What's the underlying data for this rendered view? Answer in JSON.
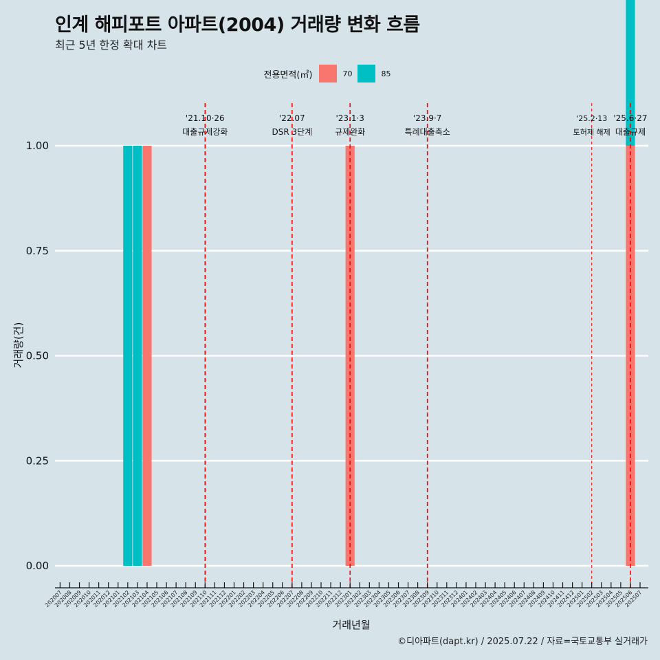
{
  "title": "인계 해피포트 아파트(2004) 거래량 변화 흐름",
  "subtitle": "최근 5년 한정 확대 차트",
  "caption": "©디아파트(dapt.kr) / 2025.07.22 / 자료=국토교통부 실거래가",
  "legend": {
    "title": "전용면적(㎡)",
    "items": [
      {
        "label": "70",
        "color": "#f8766d"
      },
      {
        "label": "85",
        "color": "#00bfc4"
      }
    ]
  },
  "chart_data": {
    "type": "bar",
    "xlabel": "거래년월",
    "ylabel": "거래량(건)",
    "ylim": [
      0,
      1
    ],
    "yticks": [
      "0.00",
      "0.25",
      "0.50",
      "0.75",
      "1.00"
    ],
    "grid": "horizontal",
    "legend_position": "top",
    "categories": [
      "202007",
      "202008",
      "202009",
      "202010",
      "202011",
      "202012",
      "202101",
      "202102",
      "202103",
      "202104",
      "202105",
      "202106",
      "202107",
      "202108",
      "202109",
      "202110",
      "202111",
      "202112",
      "202201",
      "202202",
      "202203",
      "202204",
      "202205",
      "202206",
      "202207",
      "202208",
      "202209",
      "202210",
      "202211",
      "202212",
      "202301",
      "202302",
      "202303",
      "202304",
      "202305",
      "202306",
      "202307",
      "202308",
      "202309",
      "202310",
      "202311",
      "202312",
      "202401",
      "202402",
      "202403",
      "202404",
      "202405",
      "202406",
      "202407",
      "202408",
      "202409",
      "202410",
      "202411",
      "202412",
      "202501",
      "202502",
      "202503",
      "202504",
      "202505",
      "202506",
      "202507"
    ],
    "series": [
      {
        "name": "70",
        "color": "#f8766d",
        "points": [
          [
            "202104",
            1
          ],
          [
            "202301",
            1
          ],
          [
            "202506",
            1
          ]
        ]
      },
      {
        "name": "85",
        "color": "#00bfc4",
        "points": [
          [
            "202102",
            1
          ],
          [
            "202103",
            1
          ],
          [
            "202506",
            1
          ]
        ]
      }
    ],
    "annotations": [
      {
        "at": "202110",
        "date": "'21.10·26",
        "label": "대출규제강화",
        "style": "major"
      },
      {
        "at": "202207",
        "date": "'22.07",
        "label": "DSR 3단계",
        "style": "major"
      },
      {
        "at": "202301",
        "date": "'23.1·3",
        "label": "규제완화",
        "style": "major"
      },
      {
        "at": "202309",
        "date": "'23.9·7",
        "label": "특례대출축소",
        "style": "major"
      },
      {
        "at": "202502",
        "date": "'25.2·13",
        "label": "토허제 해제",
        "style": "minor"
      },
      {
        "at": "202506",
        "date": "'25.6·27",
        "label": "대출규제",
        "style": "major"
      }
    ]
  }
}
